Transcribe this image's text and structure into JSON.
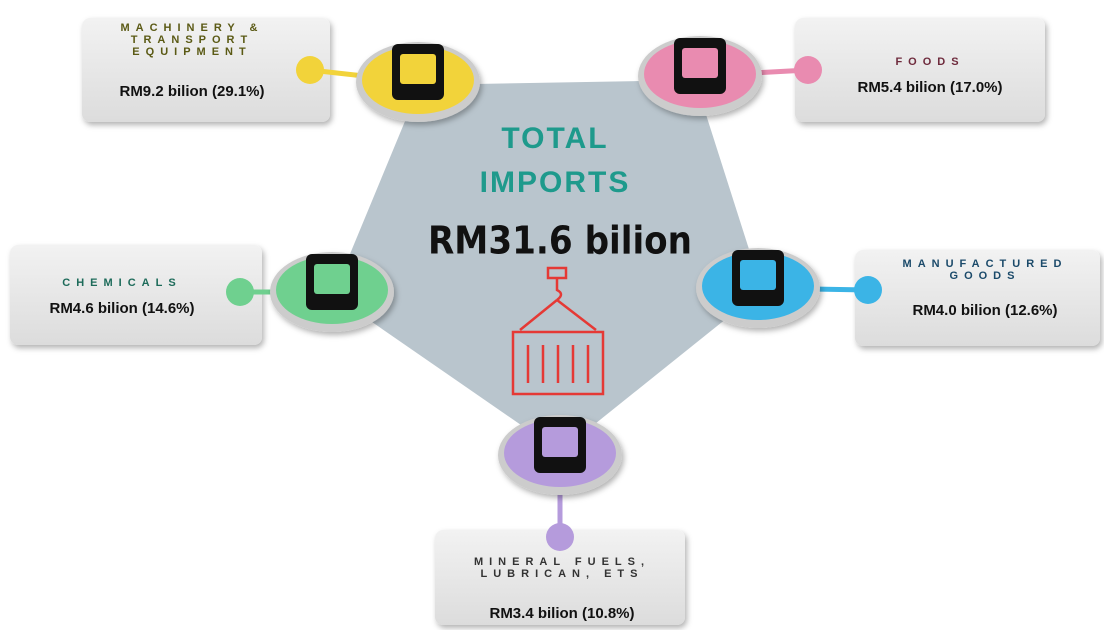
{
  "title_lines": [
    "TOTAL",
    "IMPORTS"
  ],
  "total": "RM31.6 bilion",
  "nodes": [
    {
      "label_lines": [
        "MACHINERY &",
        "TRANSPORT",
        "EQUIPMENT"
      ],
      "value": "RM9.2 bilion (29.1%)"
    },
    {
      "label_lines": [
        "FOODS"
      ],
      "value": "RM5.4 bilion (17.0%)"
    },
    {
      "label_lines": [
        "CHEMICALS"
      ],
      "value": "RM4.6 bilion (14.6%)"
    },
    {
      "label_lines": [
        "MANUFACTURED",
        "GOODS"
      ],
      "value": "RM4.0 bilion (12.6%)"
    },
    {
      "label_lines": [
        "MINERAL FUELS,",
        "LUBRICAN, ETS"
      ],
      "value": "RM3.4 bilion (10.8%)"
    }
  ]
}
